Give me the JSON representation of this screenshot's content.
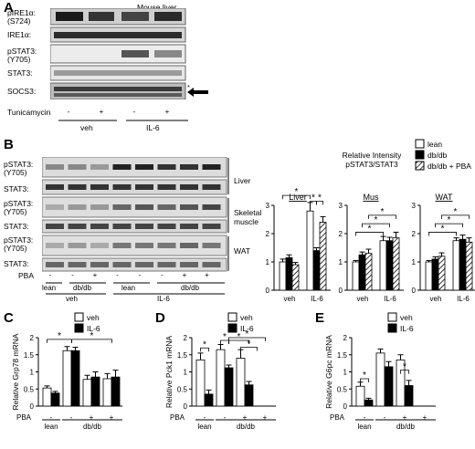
{
  "panel_a": {
    "letter": "A",
    "header": "Mouse liver",
    "rows": [
      {
        "name": "pIRE1α:",
        "sub": "(S724)"
      },
      {
        "name": "IRE1α:",
        "sub": ""
      },
      {
        "name": "pSTAT3:",
        "sub": "(Y705)"
      },
      {
        "name": "STAT3:",
        "sub": ""
      },
      {
        "name": "SOCS3:",
        "sub": ""
      }
    ],
    "star": "*",
    "treat_label": "Tunicamycin",
    "treat_signs": [
      "-",
      "+",
      "-",
      "+"
    ],
    "groups": [
      "veh",
      "IL-6"
    ]
  },
  "panel_b": {
    "letter": "B",
    "rows": [
      {
        "name": "pSTAT3:",
        "sub": "(Y705)"
      },
      {
        "name": "STAT3:",
        "sub": ""
      },
      {
        "name": "pSTAT3:",
        "sub": "(Y705)"
      },
      {
        "name": "STAT3:",
        "sub": ""
      },
      {
        "name": "pSTAT3:",
        "sub": "(Y705)"
      },
      {
        "name": "STAT3:",
        "sub": ""
      }
    ],
    "tissues": [
      "Liver",
      "Skeletal",
      "muscle",
      "WAT"
    ],
    "pba_label": "PBA",
    "pba_signs": [
      "-",
      "-",
      "+",
      "-",
      "-",
      "-",
      "+",
      "+"
    ],
    "strain_labels": [
      "lean",
      "db/db",
      "lean",
      "db/db"
    ],
    "treat_groups": [
      "veh",
      "IL-6"
    ],
    "chart_title_line1": "Relative Intensity",
    "chart_title_line2": "pSTAT3/STAT3"
  },
  "legend_b": [
    "lean",
    "db/db",
    "db/db + PBA"
  ],
  "legend_cde": [
    "veh",
    "IL-6"
  ],
  "letters": {
    "c": "C",
    "d": "D",
    "e": "E"
  },
  "chart_data": [
    {
      "type": "bar",
      "panel": "B",
      "title": "Liver",
      "ylim": [
        0,
        3
      ],
      "yticks": [
        0,
        1,
        2,
        3
      ],
      "categories": [
        "veh",
        "IL-6"
      ],
      "series": [
        {
          "name": "lean",
          "values": [
            1.0,
            2.8
          ],
          "err": [
            0.1,
            0.3
          ]
        },
        {
          "name": "db/db",
          "values": [
            1.15,
            1.4
          ],
          "err": [
            0.1,
            0.1
          ]
        },
        {
          "name": "db/db + PBA",
          "values": [
            0.9,
            2.4
          ],
          "err": [
            0.08,
            0.2
          ]
        }
      ],
      "significance": [
        "*",
        "*",
        "*"
      ]
    },
    {
      "type": "bar",
      "panel": "B",
      "title": "Mus",
      "ylim": [
        0,
        3
      ],
      "yticks": [
        0,
        1,
        2,
        3
      ],
      "categories": [
        "veh",
        "IL-6"
      ],
      "series": [
        {
          "name": "lean",
          "values": [
            1.0,
            1.75
          ],
          "err": [
            0.05,
            0.15
          ]
        },
        {
          "name": "db/db",
          "values": [
            1.25,
            1.75
          ],
          "err": [
            0.1,
            0.12
          ]
        },
        {
          "name": "db/db + PBA",
          "values": [
            1.3,
            1.85
          ],
          "err": [
            0.15,
            0.2
          ]
        }
      ],
      "significance": [
        "*",
        "*",
        "*"
      ]
    },
    {
      "type": "bar",
      "panel": "B",
      "title": "WAT",
      "ylim": [
        0,
        3
      ],
      "yticks": [
        0,
        1,
        2,
        3
      ],
      "categories": [
        "veh",
        "IL-6"
      ],
      "series": [
        {
          "name": "lean",
          "values": [
            1.0,
            1.75
          ],
          "err": [
            0.05,
            0.1
          ]
        },
        {
          "name": "db/db",
          "values": [
            1.1,
            1.8
          ],
          "err": [
            0.08,
            0.15
          ]
        },
        {
          "name": "db/db + PBA",
          "values": [
            1.2,
            1.7
          ],
          "err": [
            0.12,
            0.15
          ]
        }
      ],
      "significance": [
        "*",
        "*",
        "*"
      ]
    },
    {
      "type": "bar",
      "panel": "C",
      "ylabel": "Relative Grp78 mRNA",
      "ylim": [
        0,
        2
      ],
      "yticks": [
        0,
        0.5,
        1,
        1.5,
        2
      ],
      "pba": [
        "-",
        "-",
        "+",
        "+"
      ],
      "strains": [
        "lean",
        "db/db"
      ],
      "series": [
        {
          "name": "veh",
          "values": [
            0.53,
            1.62,
            0.78,
            0.8
          ],
          "err": [
            0.06,
            0.12,
            0.12,
            0.15
          ]
        },
        {
          "name": "IL-6",
          "values": [
            0.38,
            1.62,
            0.85,
            0.85
          ],
          "err": [
            0.05,
            0.1,
            0.15,
            0.2
          ]
        }
      ],
      "significance": [
        "*",
        "*"
      ]
    },
    {
      "type": "bar",
      "panel": "D",
      "ylabel": "Relative Pck1 mRNA",
      "ylim": [
        0,
        2
      ],
      "yticks": [
        0,
        0.5,
        1,
        1.5,
        2
      ],
      "pba": [
        "-",
        "-",
        "+",
        "+"
      ],
      "strains": [
        "lean",
        "db/db"
      ],
      "series": [
        {
          "name": "veh",
          "values": [
            1.35,
            1.65,
            1.4,
            0.0
          ],
          "err": [
            0.2,
            0.15,
            0.25,
            0.0
          ]
        },
        {
          "name": "IL-6",
          "values": [
            0.35,
            1.12,
            0.62,
            0.0
          ],
          "err": [
            0.12,
            0.08,
            0.1,
            0.0
          ]
        }
      ],
      "significance": [
        "*",
        "*",
        "*",
        "*",
        "*"
      ]
    },
    {
      "type": "bar",
      "panel": "E",
      "ylabel": "Relative G6pc mRNA",
      "ylim": [
        0,
        2
      ],
      "yticks": [
        0,
        0.5,
        1,
        1.5,
        2
      ],
      "pba": [
        "-",
        "-",
        "+",
        "+"
      ],
      "strains": [
        "lean",
        "db/db"
      ],
      "series": [
        {
          "name": "veh",
          "values": [
            0.58,
            1.55,
            1.35,
            0.0
          ],
          "err": [
            0.12,
            0.12,
            0.15,
            0.0
          ]
        },
        {
          "name": "IL-6",
          "values": [
            0.18,
            1.15,
            0.6,
            0.0
          ],
          "err": [
            0.05,
            0.15,
            0.15,
            0.0
          ]
        }
      ],
      "significance": [
        "*",
        "*"
      ]
    }
  ]
}
